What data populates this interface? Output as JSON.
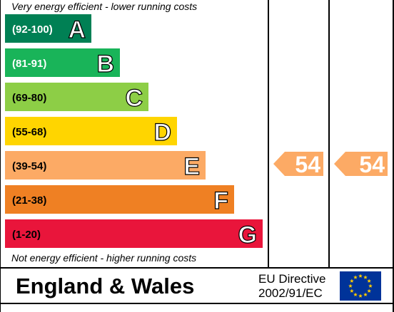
{
  "chart_data": {
    "type": "bar",
    "top_note": "Very energy efficient - lower running costs",
    "bottom_note": "Not energy efficient - higher running costs",
    "bands": [
      {
        "letter": "A",
        "range": "(92-100)",
        "color": "#008054",
        "text_color": "#ffffff"
      },
      {
        "letter": "B",
        "range": "(81-91)",
        "color": "#19b459",
        "text_color": "#ffffff"
      },
      {
        "letter": "C",
        "range": "(69-80)",
        "color": "#8dce46",
        "text_color": "#000000"
      },
      {
        "letter": "D",
        "range": "(55-68)",
        "color": "#ffd500",
        "text_color": "#000000"
      },
      {
        "letter": "E",
        "range": "(39-54)",
        "color": "#fcaa65",
        "text_color": "#000000"
      },
      {
        "letter": "F",
        "range": "(21-38)",
        "color": "#ef8023",
        "text_color": "#000000"
      },
      {
        "letter": "G",
        "range": "(1-20)",
        "color": "#e9153b",
        "text_color": "#000000"
      }
    ],
    "ratings": [
      {
        "value": "54",
        "band": "E",
        "color": "#fcaa65"
      },
      {
        "value": "54",
        "band": "E",
        "color": "#fcaa65"
      }
    ]
  },
  "footer": {
    "region": "England & Wales",
    "directive_line1": "EU Directive",
    "directive_line2": "2002/91/EC",
    "flag_color": "#003399",
    "star_color": "#ffcc00"
  }
}
